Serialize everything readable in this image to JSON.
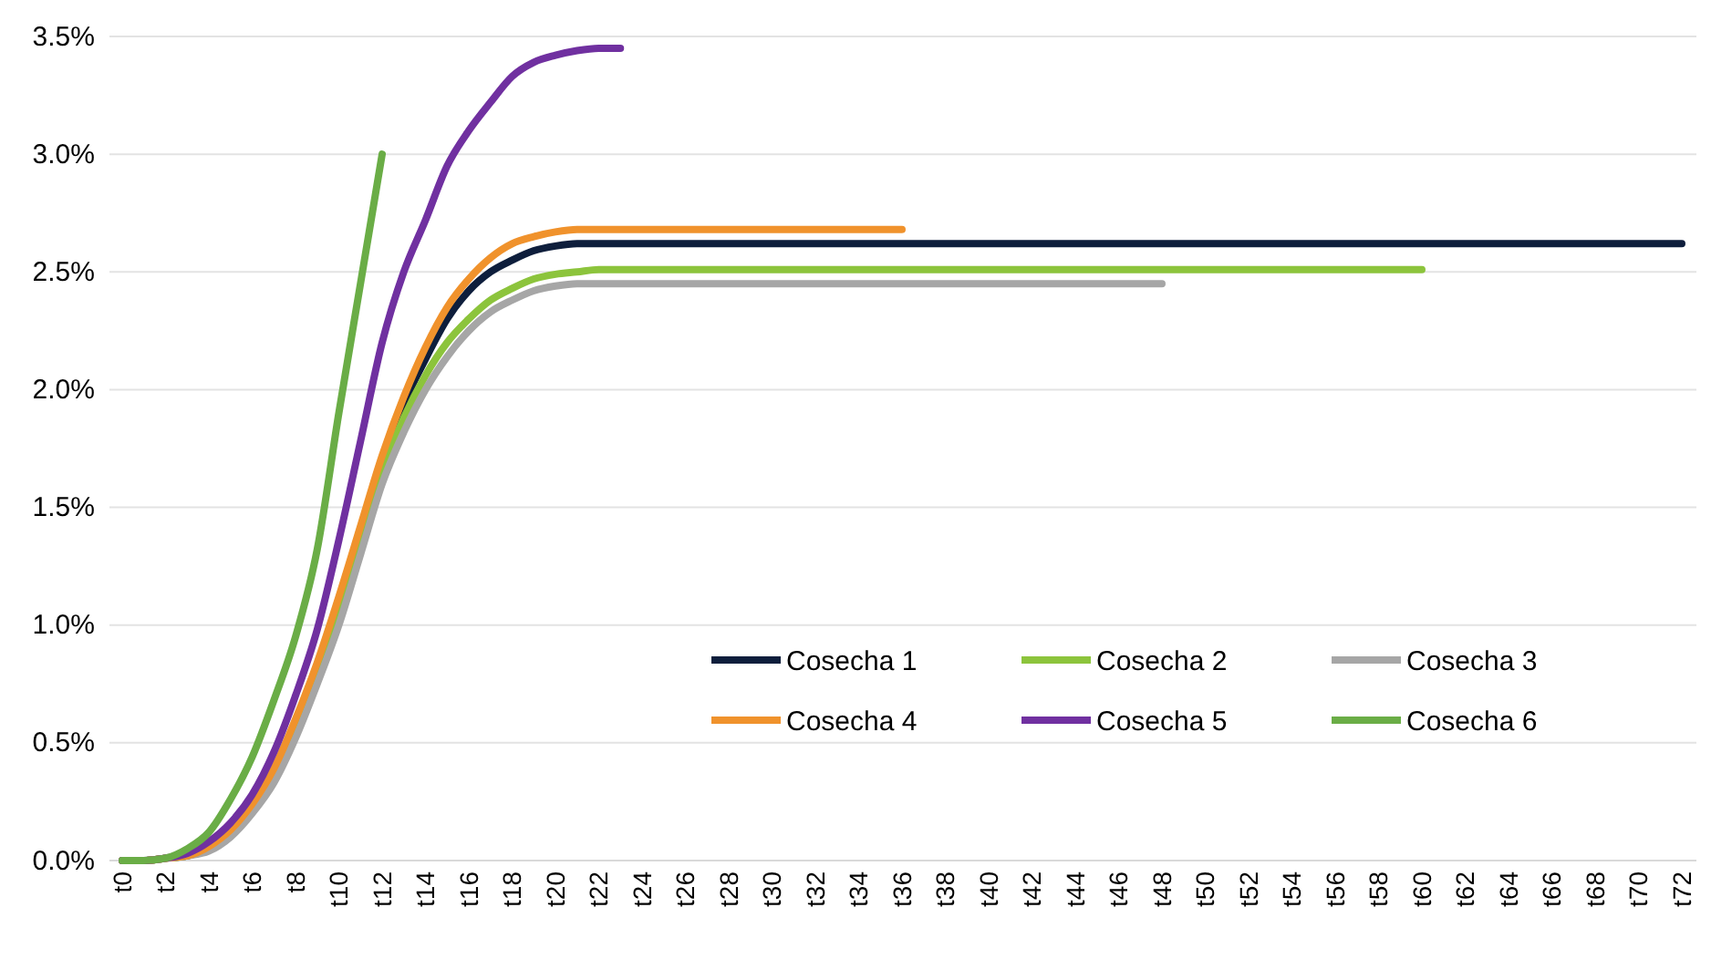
{
  "chart_data": {
    "type": "line",
    "categories": [
      "t0",
      null,
      "t2",
      null,
      "t4",
      null,
      "t6",
      null,
      "t8",
      null,
      "t10",
      null,
      "t12",
      null,
      "t14",
      null,
      "t16",
      null,
      "t18",
      null,
      "t20",
      null,
      "t22",
      null,
      "t24",
      null,
      "t26",
      null,
      "t28",
      null,
      "t30",
      null,
      "t32",
      null,
      "t34",
      null,
      "t36",
      null,
      "t38",
      null,
      "t40",
      null,
      "t42",
      null,
      "t44",
      null,
      "t46",
      null,
      "t48",
      null,
      "t50",
      null,
      "t52",
      null,
      "t54",
      null,
      "t56",
      null,
      "t58",
      null,
      "t60",
      null,
      "t62",
      null,
      "t64",
      null,
      "t66",
      null,
      "t68",
      null,
      "t70",
      null,
      "t72"
    ],
    "series": [
      {
        "name": "Cosecha 1",
        "color": "#0e1e3c",
        "values": [
          0,
          0,
          0.01,
          0.02,
          0.05,
          0.12,
          0.22,
          0.37,
          0.57,
          0.81,
          1.08,
          1.38,
          1.68,
          1.94,
          2.13,
          2.3,
          2.42,
          2.5,
          2.55,
          2.59,
          2.61,
          2.62,
          2.62,
          2.62,
          2.62,
          2.62,
          2.62,
          2.62,
          2.62,
          2.62,
          2.62,
          2.62,
          2.62,
          2.62,
          2.62,
          2.62,
          2.62,
          2.62,
          2.62,
          2.62,
          2.62,
          2.62,
          2.62,
          2.62,
          2.62,
          2.62,
          2.62,
          2.62,
          2.62,
          2.62,
          2.62,
          2.62,
          2.62,
          2.62,
          2.62,
          2.62,
          2.62,
          2.62,
          2.62,
          2.62,
          2.62,
          2.62,
          2.62,
          2.62,
          2.62,
          2.62,
          2.62,
          2.62,
          2.62,
          2.62,
          2.62,
          2.62,
          2.62
        ]
      },
      {
        "name": "Cosecha 2",
        "color": "#8cc43c",
        "values": [
          0,
          0,
          0.01,
          0.02,
          0.05,
          0.11,
          0.21,
          0.35,
          0.54,
          0.78,
          1.04,
          1.34,
          1.65,
          1.88,
          2.06,
          2.2,
          2.3,
          2.38,
          2.43,
          2.47,
          2.49,
          2.5,
          2.51,
          2.51,
          2.51,
          2.51,
          2.51,
          2.51,
          2.51,
          2.51,
          2.51,
          2.51,
          2.51,
          2.51,
          2.51,
          2.51,
          2.51,
          2.51,
          2.51,
          2.51,
          2.51,
          2.51,
          2.51,
          2.51,
          2.51,
          2.51,
          2.51,
          2.51,
          2.51,
          2.51,
          2.51,
          2.51,
          2.51,
          2.51,
          2.51,
          2.51,
          2.51,
          2.51,
          2.51,
          2.51,
          2.51,
          null,
          null,
          null,
          null,
          null,
          null,
          null,
          null,
          null,
          null,
          null,
          null
        ]
      },
      {
        "name": "Cosecha 3",
        "color": "#a6a6a6",
        "values": [
          0,
          0,
          0.01,
          0.02,
          0.04,
          0.1,
          0.2,
          0.33,
          0.52,
          0.75,
          1.0,
          1.3,
          1.6,
          1.82,
          2.0,
          2.14,
          2.25,
          2.33,
          2.38,
          2.42,
          2.44,
          2.45,
          2.45,
          2.45,
          2.45,
          2.45,
          2.45,
          2.45,
          2.45,
          2.45,
          2.45,
          2.45,
          2.45,
          2.45,
          2.45,
          2.45,
          2.45,
          2.45,
          2.45,
          2.45,
          2.45,
          2.45,
          2.45,
          2.45,
          2.45,
          2.45,
          2.45,
          2.45,
          2.45,
          null,
          null,
          null,
          null,
          null,
          null,
          null,
          null,
          null,
          null,
          null,
          null,
          null,
          null,
          null,
          null,
          null,
          null,
          null,
          null,
          null,
          null,
          null,
          null
        ]
      },
      {
        "name": "Cosecha 4",
        "color": "#f0922c",
        "values": [
          0,
          0,
          0.01,
          0.02,
          0.06,
          0.13,
          0.24,
          0.39,
          0.6,
          0.84,
          1.12,
          1.42,
          1.72,
          1.97,
          2.18,
          2.35,
          2.47,
          2.56,
          2.62,
          2.65,
          2.67,
          2.68,
          2.68,
          2.68,
          2.68,
          2.68,
          2.68,
          2.68,
          2.68,
          2.68,
          2.68,
          2.68,
          2.68,
          2.68,
          2.68,
          2.68,
          2.68,
          null,
          null,
          null,
          null,
          null,
          null,
          null,
          null,
          null,
          null,
          null,
          null,
          null,
          null,
          null,
          null,
          null,
          null,
          null,
          null,
          null,
          null,
          null,
          null,
          null,
          null,
          null,
          null,
          null,
          null,
          null,
          null,
          null,
          null,
          null,
          null
        ]
      },
      {
        "name": "Cosecha 5",
        "color": "#7030a0",
        "values": [
          0,
          0,
          0.01,
          0.03,
          0.08,
          0.16,
          0.28,
          0.46,
          0.7,
          0.98,
          1.36,
          1.78,
          2.2,
          2.5,
          2.72,
          2.95,
          3.1,
          3.22,
          3.33,
          3.39,
          3.42,
          3.44,
          3.45,
          3.45,
          null,
          null,
          null,
          null,
          null,
          null,
          null,
          null,
          null,
          null,
          null,
          null,
          null,
          null,
          null,
          null,
          null,
          null,
          null,
          null,
          null,
          null,
          null,
          null,
          null,
          null,
          null,
          null,
          null,
          null,
          null,
          null,
          null,
          null,
          null,
          null,
          null,
          null,
          null,
          null,
          null,
          null,
          null,
          null,
          null,
          null,
          null,
          null,
          null
        ]
      },
      {
        "name": "Cosecha 6",
        "color": "#6aad46",
        "values": [
          0,
          0,
          0.01,
          0.05,
          0.12,
          0.26,
          0.44,
          0.68,
          0.95,
          1.32,
          1.9,
          2.45,
          3.0,
          null,
          null,
          null,
          null,
          null,
          null,
          null,
          null,
          null,
          null,
          null,
          null,
          null,
          null,
          null,
          null,
          null,
          null,
          null,
          null,
          null,
          null,
          null,
          null,
          null,
          null,
          null,
          null,
          null,
          null,
          null,
          null,
          null,
          null,
          null,
          null,
          null,
          null,
          null,
          null,
          null,
          null,
          null,
          null,
          null,
          null,
          null,
          null,
          null,
          null,
          null,
          null,
          null,
          null,
          null,
          null,
          null,
          null,
          null,
          null
        ]
      }
    ],
    "ylim": [
      0,
      3.5
    ],
    "yticks": [
      {
        "value": 0,
        "label": "0.0%"
      },
      {
        "value": 0.5,
        "label": "0.5%"
      },
      {
        "value": 1,
        "label": "1.0%"
      },
      {
        "value": 1.5,
        "label": "1.5%"
      },
      {
        "value": 2,
        "label": "2.0%"
      },
      {
        "value": 2.5,
        "label": "2.5%"
      },
      {
        "value": 3,
        "label": "3.0%"
      },
      {
        "value": 3.5,
        "label": "3.5%"
      }
    ],
    "grid": "y",
    "legend": "bottom right",
    "marker": "none",
    "line_style": "solid"
  }
}
